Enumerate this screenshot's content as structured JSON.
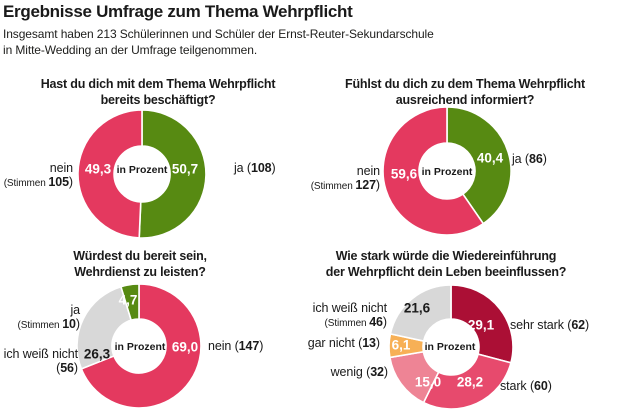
{
  "header": {
    "title": "Ergebnisse Umfrage zum Thema Wehrpflicht",
    "subtitle_lines": [
      "Insgesamt haben 213 Schülerinnen und Schüler der Ernst-Reuter-Sekundarschule",
      "in Mitte-Wedding an der Umfrage teilgenommen."
    ]
  },
  "colors": {
    "pink": "#e4395f",
    "green": "#578a12",
    "gray": "#d8d8d8",
    "dark_red": "#ab0f35",
    "stark_pink": "#e74a6d",
    "light_pink": "#ee8495",
    "orange": "#f7b056",
    "text": "#1a1a1a",
    "value_light": "#ffffff"
  },
  "chart_data": [
    {
      "id": "beschaeftigt",
      "type": "pie",
      "donut": true,
      "unit_label": "in Prozent",
      "start_angle": 0,
      "title": "Hast du dich mit dem Thema Wehrpflicht bereits beschäftigt?",
      "title_lines": [
        "Hast du dich mit dem Thema Wehrpflicht",
        "bereits beschäftigt?"
      ],
      "slices": [
        {
          "id": "ja",
          "label": "ja",
          "votes": 108,
          "percent": 50.7,
          "percent_label": "50,7",
          "color": "#578a12",
          "value_color": "#ffffff"
        },
        {
          "id": "nein",
          "label": "nein",
          "votes": 105,
          "percent": 49.3,
          "percent_label": "49,3",
          "color": "#e4395f",
          "value_color": "#ffffff"
        }
      ],
      "outside_labels": {
        "nein": [
          [
            "nein"
          ],
          [
            {
              "t": "(Stimmen ",
              "s": true
            },
            {
              "t": "105",
              "b": true
            },
            {
              "t": ")"
            }
          ]
        ],
        "ja": [
          [
            {
              "t": "ja ("
            },
            {
              "t": "108",
              "b": true
            },
            {
              "t": ")"
            }
          ]
        ]
      }
    },
    {
      "id": "informiert",
      "type": "pie",
      "donut": true,
      "unit_label": "in Prozent",
      "start_angle": 0,
      "title": "Fühlst du dich zu dem Thema Wehrpflicht ausreichend informiert?",
      "title_lines": [
        "Fühlst du dich zu dem Thema Wehrpflicht",
        "ausreichend informiert?"
      ],
      "slices": [
        {
          "id": "ja",
          "label": "ja",
          "votes": 86,
          "percent": 40.4,
          "percent_label": "40,4",
          "color": "#578a12",
          "value_color": "#ffffff"
        },
        {
          "id": "nein",
          "label": "nein",
          "votes": 127,
          "percent": 59.6,
          "percent_label": "59,6",
          "color": "#e4395f",
          "value_color": "#ffffff"
        }
      ],
      "outside_labels": {
        "nein": [
          [
            "nein"
          ],
          [
            {
              "t": "(Stimmen ",
              "s": true
            },
            {
              "t": "127",
              "b": true
            },
            {
              "t": ")"
            }
          ]
        ],
        "ja": [
          [
            {
              "t": "ja ("
            },
            {
              "t": "86",
              "b": true
            },
            {
              "t": ")"
            }
          ]
        ]
      }
    },
    {
      "id": "bereitschaft",
      "type": "pie",
      "donut": true,
      "unit_label": "in Prozent",
      "start_angle": 0,
      "title": "Würdest du bereit sein, Wehrdienst zu leisten?",
      "title_lines": [
        "Würdest du bereit sein,",
        "Wehrdienst zu leisten?"
      ],
      "slices": [
        {
          "id": "nein",
          "label": "nein",
          "votes": 147,
          "percent": 69.0,
          "percent_label": "69,0",
          "color": "#e4395f",
          "value_color": "#ffffff"
        },
        {
          "id": "ich-weiss-nicht",
          "label": "ich weiß nicht",
          "votes": 56,
          "percent": 26.3,
          "percent_label": "26,3",
          "color": "#d8d8d8",
          "value_color": "#1a1a1a"
        },
        {
          "id": "ja",
          "label": "ja",
          "votes": 10,
          "percent": 4.7,
          "percent_label": "4,7",
          "color": "#578a12",
          "value_color": "#ffffff"
        }
      ],
      "outside_labels": {
        "ja": [
          [
            "ja"
          ],
          [
            {
              "t": "(Stimmen ",
              "s": true
            },
            {
              "t": "10",
              "b": true
            },
            {
              "t": ")"
            }
          ]
        ],
        "ich_weiss_nicht": [
          [
            "ich weiß nicht"
          ],
          [
            {
              "t": "("
            },
            {
              "t": "56",
              "b": true
            },
            {
              "t": ")"
            }
          ]
        ],
        "nein": [
          [
            {
              "t": "nein ("
            },
            {
              "t": "147",
              "b": true
            },
            {
              "t": ")"
            }
          ]
        ]
      }
    },
    {
      "id": "beeinflussung",
      "type": "pie",
      "donut": true,
      "unit_label": "in Prozent",
      "start_angle": 0,
      "title": "Wie stark würde die Wiedereinführung der Wehrpflicht dein Leben beeinflussen?",
      "title_lines": [
        "Wie stark würde die Wiedereinführung",
        "der Wehrpflicht dein Leben beeinflussen?"
      ],
      "slices": [
        {
          "id": "sehr-stark",
          "label": "sehr stark",
          "votes": 62,
          "percent": 29.1,
          "percent_label": "29,1",
          "color": "#ab0f35",
          "value_color": "#ffffff"
        },
        {
          "id": "stark",
          "label": "stark",
          "votes": 60,
          "percent": 28.2,
          "percent_label": "28,2",
          "color": "#e74a6d",
          "value_color": "#ffffff"
        },
        {
          "id": "wenig",
          "label": "wenig",
          "votes": 32,
          "percent": 15.0,
          "percent_label": "15,0",
          "color": "#ee8495",
          "value_color": "#ffffff"
        },
        {
          "id": "gar-nicht",
          "label": "gar nicht",
          "votes": 13,
          "percent": 6.1,
          "percent_label": "6,1",
          "color": "#f7b056",
          "value_color": "#ffffff"
        },
        {
          "id": "ich-weiss-nicht",
          "label": "ich weiß nicht",
          "votes": 46,
          "percent": 21.6,
          "percent_label": "21,6",
          "color": "#d8d8d8",
          "value_color": "#1a1a1a"
        }
      ],
      "outside_labels": {
        "ich_weiss_nicht": [
          [
            "ich weiß nicht"
          ],
          [
            {
              "t": "(Stimmen ",
              "s": true
            },
            {
              "t": "46",
              "b": true
            },
            {
              "t": ")"
            }
          ]
        ],
        "gar_nicht": [
          [
            {
              "t": "gar nicht ("
            },
            {
              "t": "13",
              "b": true
            },
            {
              "t": ")"
            }
          ]
        ],
        "wenig": [
          [
            {
              "t": "wenig ("
            },
            {
              "t": "32",
              "b": true
            },
            {
              "t": ")"
            }
          ]
        ],
        "sehr_stark": [
          [
            {
              "t": "sehr stark ("
            },
            {
              "t": "62",
              "b": true
            },
            {
              "t": ")"
            }
          ]
        ],
        "stark": [
          [
            {
              "t": "stark ("
            },
            {
              "t": "60",
              "b": true
            },
            {
              "t": ")"
            }
          ]
        ]
      }
    }
  ]
}
